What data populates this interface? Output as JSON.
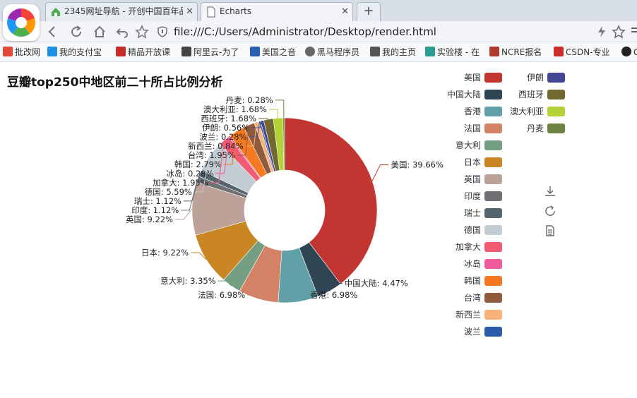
{
  "browser": {
    "tabs": [
      {
        "title": "2345网址导航 - 开创中国百年品",
        "active": false
      },
      {
        "title": "Echarts",
        "active": true
      }
    ],
    "url": "file:///C:/Users/Administrator/Desktop/render.html",
    "bookmarks": [
      {
        "label": "批改网",
        "icon_color": "#e0483a"
      },
      {
        "label": "我的支付宝",
        "icon_color": "#1a8fe3"
      },
      {
        "label": "精品开放课",
        "icon_color": "#c62b2b"
      },
      {
        "label": "阿里云-为了",
        "icon_color": "#444444"
      },
      {
        "label": "美国之音",
        "icon_color": "#2b5fb3"
      },
      {
        "label": "黑马程序员",
        "icon_color": "#666666"
      },
      {
        "label": "我的主页",
        "icon_color": "#555555"
      },
      {
        "label": "实验楼 - 在",
        "icon_color": "#2a9d8f"
      },
      {
        "label": "NCRE报名",
        "icon_color": "#b03a2e"
      },
      {
        "label": "CSDN-专业",
        "icon_color": "#c9302c"
      },
      {
        "label": "G",
        "icon_color": "#222222"
      }
    ]
  },
  "chart_data": {
    "type": "pie",
    "variant": "donut",
    "title": "豆瓣top250中地区前二十所占比例分析",
    "legend_position": "right",
    "label_format": "{name}: {percent}%",
    "slices": [
      {
        "name": "美国",
        "percent": 39.66,
        "color": "#c23531"
      },
      {
        "name": "中国大陆",
        "percent": 4.47,
        "color": "#2f4554"
      },
      {
        "name": "香港",
        "percent": 6.98,
        "color": "#61a0a8"
      },
      {
        "name": "法国",
        "percent": 6.98,
        "color": "#d48265"
      },
      {
        "name": "意大利",
        "percent": 3.35,
        "color": "#749f83"
      },
      {
        "name": "日本",
        "percent": 9.22,
        "color": "#ca8622"
      },
      {
        "name": "英国",
        "percent": 9.22,
        "color": "#bda29a"
      },
      {
        "name": "印度",
        "percent": 1.12,
        "color": "#6e7074"
      },
      {
        "name": "瑞士",
        "percent": 1.12,
        "color": "#546570"
      },
      {
        "name": "德国",
        "percent": 5.59,
        "color": "#c4ccd3"
      },
      {
        "name": "加拿大",
        "percent": 1.95,
        "color": "#f05b72"
      },
      {
        "name": "冰岛",
        "percent": 0.28,
        "color": "#ef5b9c"
      },
      {
        "name": "韩国",
        "percent": 2.79,
        "color": "#f47920"
      },
      {
        "name": "台湾",
        "percent": 1.95,
        "color": "#905a3d"
      },
      {
        "name": "新西兰",
        "percent": 0.84,
        "color": "#fab27b"
      },
      {
        "name": "波兰",
        "percent": 0.28,
        "color": "#2a5caa"
      },
      {
        "name": "伊朗",
        "percent": 0.56,
        "color": "#444693"
      },
      {
        "name": "西班牙",
        "percent": 1.68,
        "color": "#726930"
      },
      {
        "name": "澳大利亚",
        "percent": 1.68,
        "color": "#b2d235"
      },
      {
        "name": "丹麦",
        "percent": 0.28,
        "color": "#6d8346"
      }
    ]
  }
}
